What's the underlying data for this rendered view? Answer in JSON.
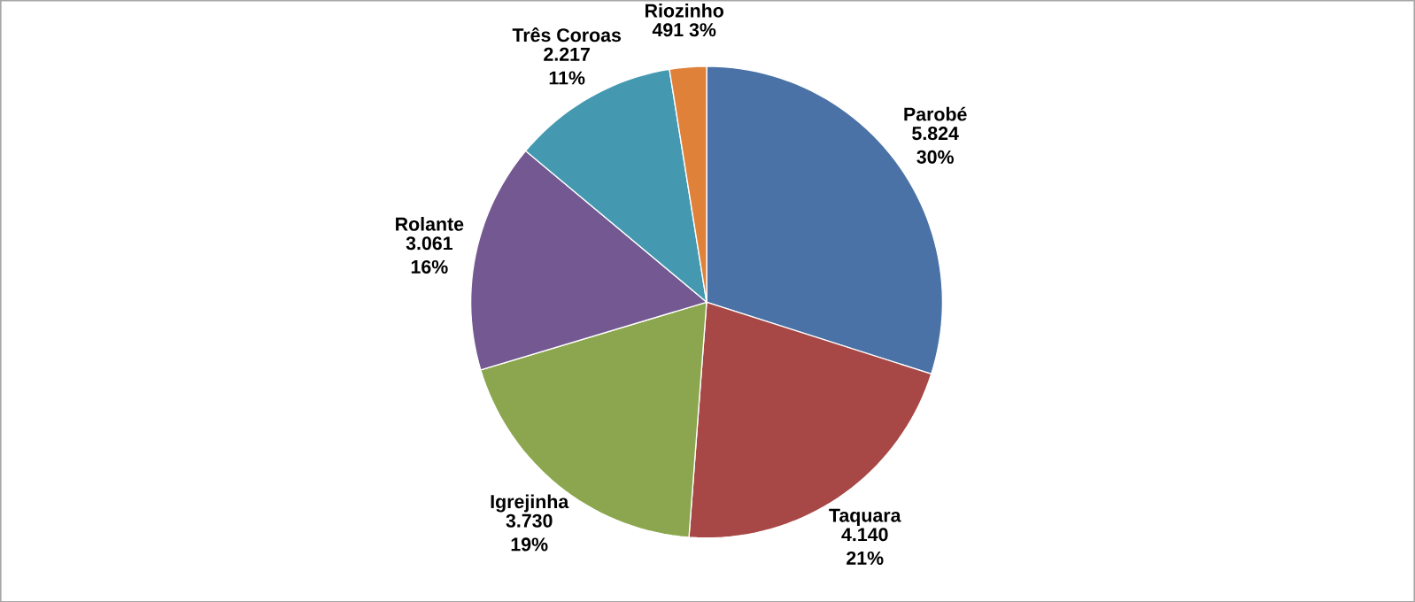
{
  "chart_data": {
    "type": "pie",
    "categories": [
      "Parobé",
      "Taquara",
      "Igrejinha",
      "Rolante",
      "Três Coroas",
      "Riozinho"
    ],
    "values": [
      5824,
      4140,
      3730,
      3061,
      2217,
      491
    ],
    "value_labels": [
      "5.824 30%",
      "4.140 21%",
      "3.730 19%",
      "3.061 16%",
      "2.217 11%",
      "491 3%"
    ],
    "colors": [
      "#4a72a6",
      "#a84846",
      "#8ba64e",
      "#735891",
      "#4499b0",
      "#e0813a"
    ]
  }
}
